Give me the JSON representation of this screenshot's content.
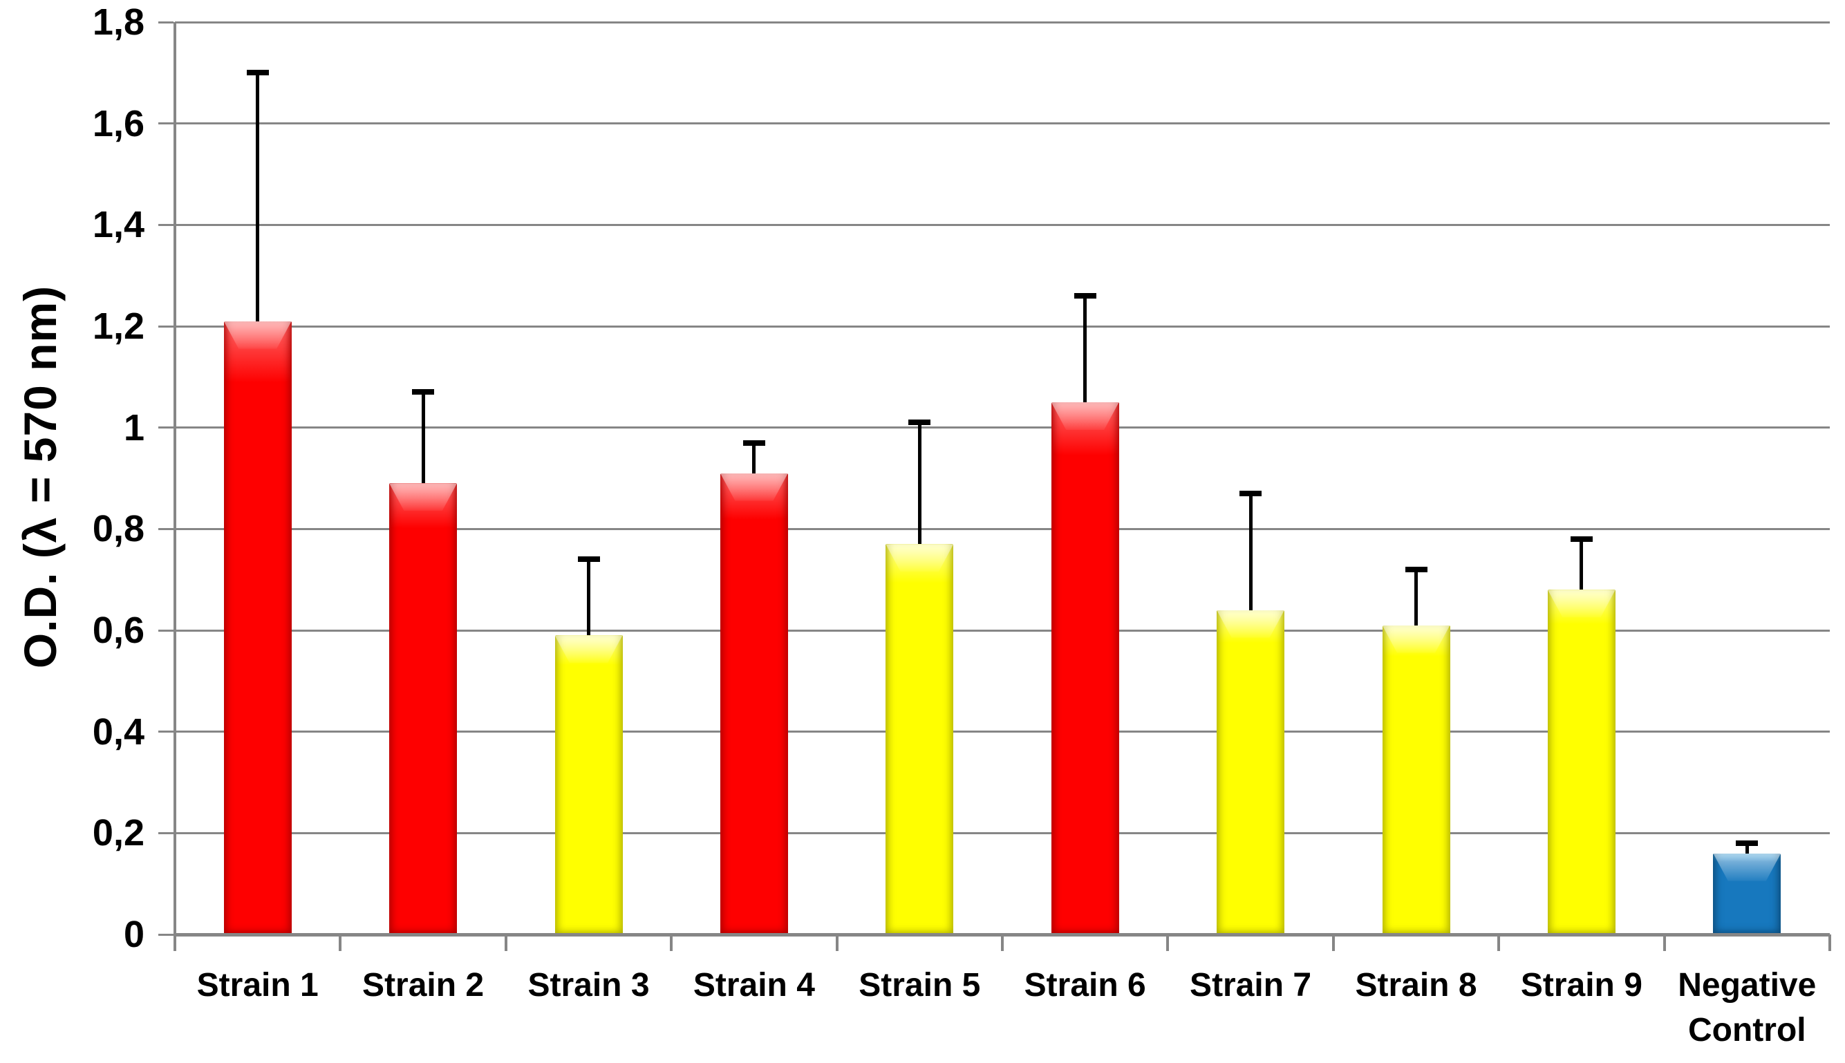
{
  "chart_data": {
    "type": "bar",
    "title": "",
    "xlabel": "",
    "ylabel": "O.D. (λ = 570 nm)",
    "ylim": [
      0,
      1.8
    ],
    "ytick_step": 0.2,
    "ytick_values": [
      0,
      0.2,
      0.4,
      0.6,
      0.8,
      1.0,
      1.2,
      1.4,
      1.6,
      1.8
    ],
    "ytick_labels": [
      "0",
      "0,2",
      "0,4",
      "0,6",
      "0,8",
      "1",
      "1,2",
      "1,4",
      "1,6",
      "1,8"
    ],
    "decimal_separator": ",",
    "grid": true,
    "legend_position": "none",
    "categories": [
      "Strain 1",
      "Strain 2",
      "Strain 3",
      "Strain 4",
      "Strain 5",
      "Strain 6",
      "Strain 7",
      "Strain 8",
      "Strain 9",
      "Negative Control"
    ],
    "values": [
      1.21,
      0.89,
      0.59,
      0.91,
      0.77,
      1.05,
      0.64,
      0.61,
      0.68,
      0.16
    ],
    "error_bar_tops": [
      1.7,
      1.07,
      0.74,
      0.97,
      1.01,
      1.26,
      0.87,
      0.72,
      0.78,
      0.18
    ],
    "error_bar_direction": "plus",
    "bar_colors": [
      "red",
      "red",
      "yellow",
      "red",
      "yellow",
      "red",
      "yellow",
      "yellow",
      "yellow",
      "blue"
    ],
    "palette": {
      "red": {
        "base": "#FE0000",
        "light": "#FF6B6B",
        "dark": "#A80000"
      },
      "yellow": {
        "base": "#FFFF00",
        "light": "#FFFF99",
        "dark": "#ACAC00"
      },
      "blue": {
        "base": "#1778BE",
        "light": "#55B2E6",
        "dark": "#0D4A77"
      }
    },
    "grid_color": "#868686",
    "axis_color": "#868686",
    "text_color": "#000000",
    "background_color": "#FFFFFF"
  }
}
